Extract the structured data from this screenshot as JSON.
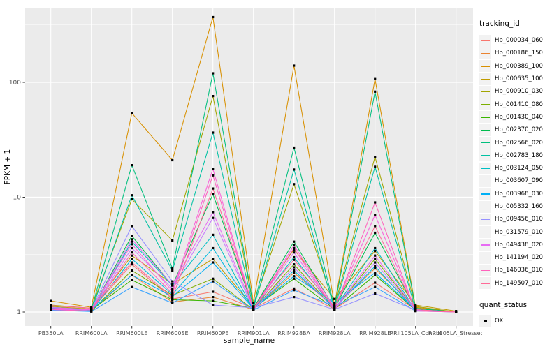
{
  "chart_data": {
    "type": "line",
    "title": "",
    "xlabel": "sample_name",
    "ylabel": "FPKM + 1",
    "y_scale": "log10",
    "y_ticks": [
      1,
      10,
      100
    ],
    "y_minor_ticks": [
      3.162,
      31.62,
      316.2
    ],
    "ylim": [
      0.93,
      450
    ],
    "grid": true,
    "legend_position": "right",
    "point_color": "#000000",
    "point_shape": "square",
    "categories": [
      "PB350LA",
      "RRIM600LA",
      "RRIM600LE",
      "RRIM600SE",
      "RRIM600PE",
      "RRIM901LA",
      "RRIM928BA",
      "RRIM928LA",
      "RRIM928LE",
      "RRII105LA_Control",
      "RRII105LA_Stressed"
    ],
    "series": [
      {
        "name": "Hb_000034_060",
        "color": "#F8766D",
        "values": [
          1.1,
          1.05,
          2.6,
          1.3,
          1.5,
          1.08,
          1.6,
          1.06,
          1.8,
          1.05,
          1.0
        ]
      },
      {
        "name": "Hb_000186_150",
        "color": "#EA8331",
        "values": [
          1.06,
          1.02,
          2.1,
          1.22,
          1.35,
          1.05,
          2.2,
          1.1,
          2.4,
          1.08,
          1.0
        ]
      },
      {
        "name": "Hb_000389_100",
        "color": "#D89000",
        "values": [
          1.25,
          1.1,
          54.0,
          21.0,
          370.0,
          1.2,
          140.0,
          1.15,
          107.0,
          1.1,
          1.0
        ]
      },
      {
        "name": "Hb_000635_100",
        "color": "#C09B00",
        "values": [
          1.12,
          1.06,
          3.1,
          1.75,
          2.9,
          1.1,
          3.5,
          1.3,
          3.4,
          1.15,
          1.02
        ]
      },
      {
        "name": "Hb_000910_030",
        "color": "#A3A500",
        "values": [
          1.15,
          1.08,
          9.6,
          4.2,
          76.0,
          1.12,
          13.0,
          1.12,
          22.5,
          1.12,
          1.0
        ]
      },
      {
        "name": "Hb_001410_080",
        "color": "#7CAE00",
        "values": [
          1.05,
          1.02,
          2.3,
          1.4,
          1.95,
          1.05,
          2.6,
          1.05,
          2.9,
          1.05,
          1.0
        ]
      },
      {
        "name": "Hb_001430_040",
        "color": "#39B600",
        "values": [
          1.08,
          1.04,
          1.9,
          1.28,
          1.25,
          1.08,
          1.95,
          1.06,
          2.1,
          1.04,
          1.0
        ]
      },
      {
        "name": "Hb_002370_020",
        "color": "#00BB4E",
        "values": [
          1.06,
          1.03,
          4.6,
          1.7,
          10.6,
          1.08,
          4.1,
          1.08,
          4.9,
          1.06,
          1.0
        ]
      },
      {
        "name": "Hb_002566_020",
        "color": "#00BF7D",
        "values": [
          1.1,
          1.05,
          19.0,
          2.4,
          120.0,
          1.12,
          27.0,
          1.1,
          83.0,
          1.08,
          1.0
        ]
      },
      {
        "name": "Hb_002783_180",
        "color": "#00C1A3",
        "values": [
          1.05,
          1.02,
          10.4,
          2.3,
          36.5,
          1.08,
          17.4,
          1.06,
          18.4,
          1.05,
          1.0
        ]
      },
      {
        "name": "Hb_003124_050",
        "color": "#00BFC4",
        "values": [
          1.04,
          1.02,
          4.1,
          1.7,
          4.7,
          1.05,
          3.0,
          1.05,
          3.6,
          1.04,
          1.0
        ]
      },
      {
        "name": "Hb_003607_090",
        "color": "#00BAE0",
        "values": [
          1.05,
          1.02,
          2.9,
          1.42,
          3.6,
          1.05,
          2.3,
          1.08,
          2.5,
          1.03,
          1.0
        ]
      },
      {
        "name": "Hb_003968_030",
        "color": "#00B0F6",
        "values": [
          1.08,
          1.04,
          2.1,
          1.36,
          2.7,
          1.07,
          2.05,
          1.2,
          2.2,
          1.05,
          1.0
        ]
      },
      {
        "name": "Hb_005332_160",
        "color": "#35A2FF",
        "values": [
          1.04,
          1.01,
          1.65,
          1.2,
          1.85,
          1.04,
          1.55,
          1.12,
          1.65,
          1.02,
          1.0
        ]
      },
      {
        "name": "Hb_009456_010",
        "color": "#9590FF",
        "values": [
          1.1,
          1.05,
          5.6,
          1.85,
          1.15,
          1.09,
          1.35,
          1.05,
          1.45,
          1.04,
          1.0
        ]
      },
      {
        "name": "Hb_031579_010",
        "color": "#C77CFF",
        "values": [
          1.05,
          1.02,
          3.6,
          1.6,
          6.6,
          1.05,
          2.45,
          1.05,
          2.7,
          1.04,
          1.0
        ]
      },
      {
        "name": "Hb_049438_020",
        "color": "#E76BF3",
        "values": [
          1.06,
          1.04,
          4.3,
          1.72,
          7.4,
          1.08,
          3.3,
          1.06,
          3.1,
          1.05,
          1.0
        ]
      },
      {
        "name": "Hb_141194_020",
        "color": "#FA62DB",
        "values": [
          1.09,
          1.05,
          3.9,
          1.52,
          17.6,
          1.06,
          3.8,
          1.09,
          7.0,
          1.05,
          1.0
        ]
      },
      {
        "name": "Hb_146036_010",
        "color": "#FF62BC",
        "values": [
          1.05,
          1.02,
          3.3,
          1.45,
          15.5,
          1.05,
          3.6,
          1.05,
          9.0,
          1.02,
          1.0
        ]
      },
      {
        "name": "Hb_149507_010",
        "color": "#FF6A98",
        "values": [
          1.14,
          1.08,
          2.7,
          1.34,
          11.9,
          1.09,
          2.85,
          1.1,
          5.6,
          1.05,
          1.0
        ]
      }
    ]
  },
  "legend": {
    "title": "tracking_id"
  },
  "legend2": {
    "title": "quant_status",
    "items": [
      {
        "label": "OK"
      }
    ]
  },
  "style": {
    "panel_bg": "#EBEBEB",
    "grid_color": "#FFFFFF",
    "tick_label_color": "#4D4D4D",
    "axis_title_color": "#000000"
  }
}
